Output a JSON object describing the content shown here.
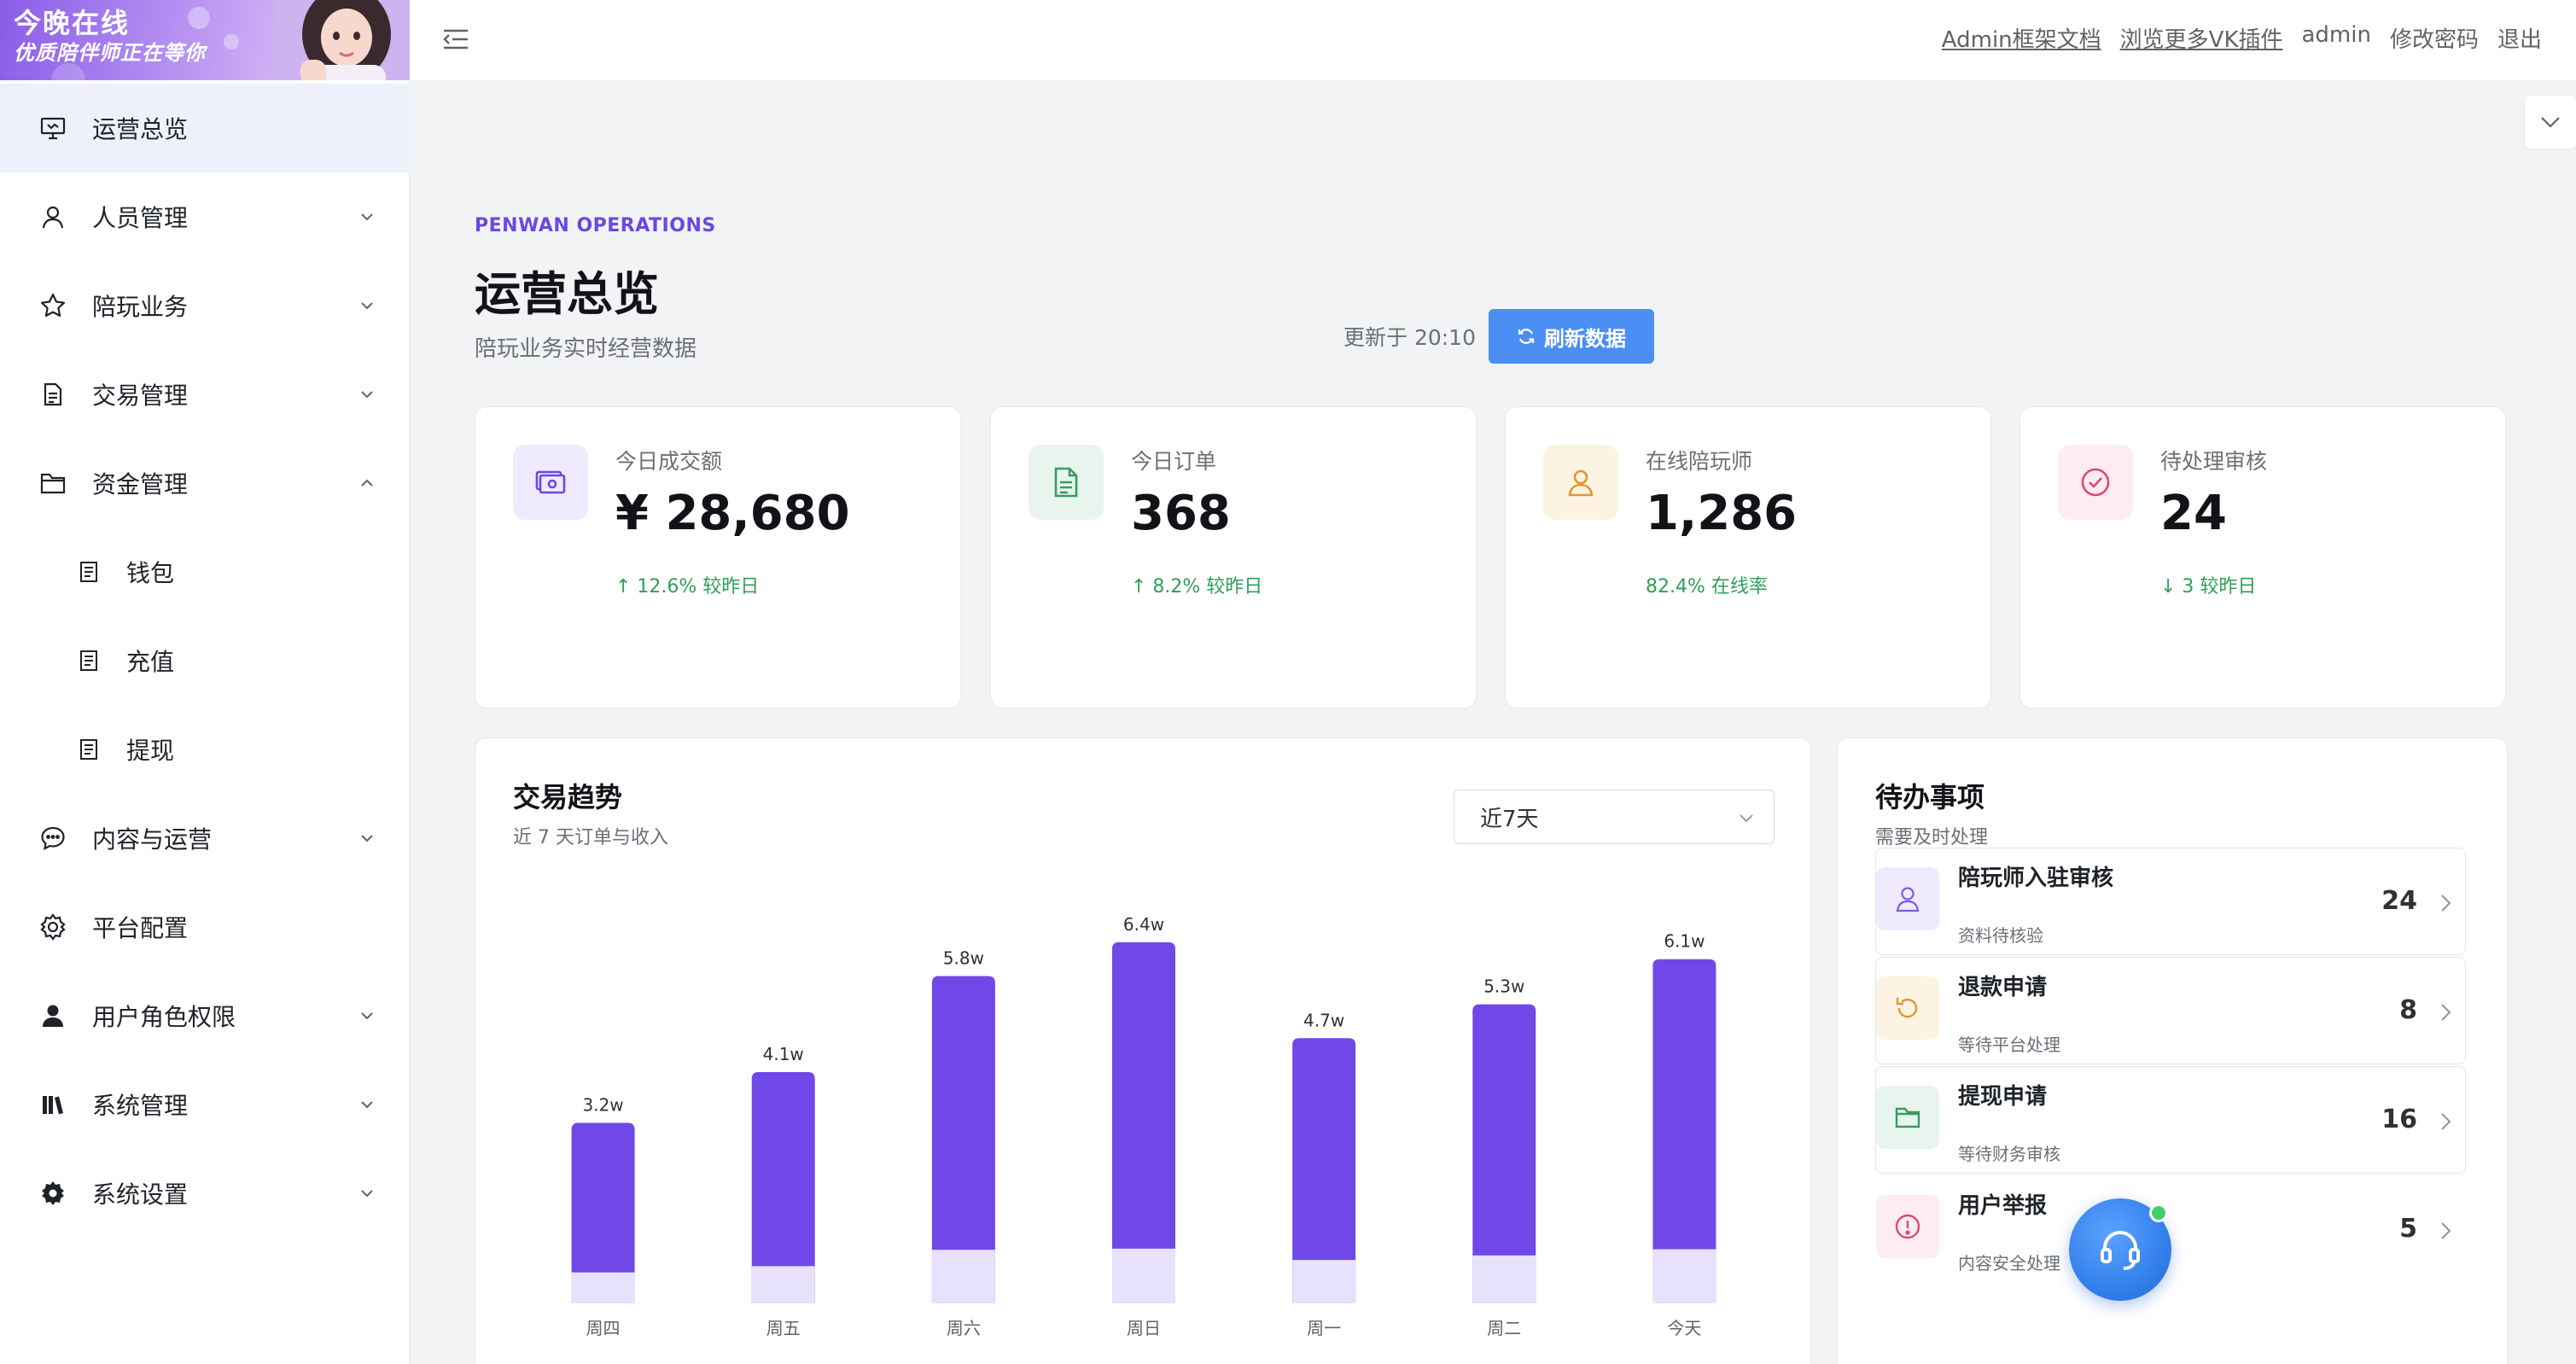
{
  "banner": {
    "line1": "今晚在线",
    "line2": "优质陪伴师正在等你"
  },
  "sidebar": {
    "items": [
      {
        "label": "运营总览",
        "icon": "presentation-board-icon",
        "active": true
      },
      {
        "label": "人员管理",
        "icon": "user-icon",
        "expandable": true,
        "expanded": false
      },
      {
        "label": "陪玩业务",
        "icon": "star-icon",
        "expandable": true,
        "expanded": false
      },
      {
        "label": "交易管理",
        "icon": "document-icon",
        "expandable": true,
        "expanded": false
      },
      {
        "label": "资金管理",
        "icon": "folder-icon",
        "expandable": true,
        "expanded": true
      },
      {
        "label": "钱包",
        "icon": "document-icon",
        "sub": true
      },
      {
        "label": "充值",
        "icon": "document-icon",
        "sub": true
      },
      {
        "label": "提现",
        "icon": "document-icon",
        "sub": true
      },
      {
        "label": "内容与运营",
        "icon": "chat-bubble-icon",
        "expandable": true,
        "expanded": false
      },
      {
        "label": "平台配置",
        "icon": "gear-icon"
      },
      {
        "label": "用户角色权限",
        "icon": "person-solid-icon",
        "expandable": true,
        "expanded": false
      },
      {
        "label": "系统管理",
        "icon": "books-icon",
        "expandable": true,
        "expanded": false
      },
      {
        "label": "系统设置",
        "icon": "gear-solid-icon",
        "expandable": true,
        "expanded": false
      }
    ]
  },
  "header": {
    "links": [
      "Admin框架文档",
      "浏览更多VK插件",
      "admin",
      "修改密码",
      "退出"
    ]
  },
  "page": {
    "kicker": "PENWAN OPERATIONS",
    "title": "运营总览",
    "subtitle": "陪玩业务实时经营数据",
    "updated": "更新于 20:10",
    "refresh_label": "刷新数据"
  },
  "stats": [
    {
      "label": "今日成交额",
      "value": "¥ 28,680",
      "trend": "↑ 12.6% 较昨日",
      "icon": "money-icon",
      "accent": "#6b48e0",
      "bg": "#efeafd"
    },
    {
      "label": "今日订单",
      "value": "368",
      "trend": "↑ 8.2% 较昨日",
      "icon": "file-icon",
      "accent": "#3a9a63",
      "bg": "#e8f5ee"
    },
    {
      "label": "在线陪玩师",
      "value": "1,286",
      "trend": "82.4% 在线率",
      "icon": "user-icon",
      "accent": "#e0972f",
      "bg": "#fdf3e3"
    },
    {
      "label": "待处理审核",
      "value": "24",
      "trend": "↓ 3 较昨日",
      "icon": "check-circle-icon",
      "accent": "#e0467a",
      "bg": "#fdecf2"
    }
  ],
  "trend": {
    "title": "交易趋势",
    "subtitle": "近 7 天订单与收入",
    "range": "近7天"
  },
  "chart_data": {
    "type": "bar",
    "categories": [
      "周四",
      "周五",
      "周六",
      "周日",
      "周一",
      "周二",
      "今天"
    ],
    "value_labels": [
      "3.2w",
      "4.1w",
      "5.8w",
      "6.4w",
      "4.7w",
      "5.3w",
      "6.1w"
    ],
    "series": [
      {
        "values": [
          3.2,
          4.1,
          5.8,
          6.4,
          4.7,
          5.3,
          6.1
        ],
        "color": "#7048e8"
      },
      {
        "values": [
          0.55,
          0.66,
          0.95,
          0.97,
          0.77,
          0.85,
          0.96
        ],
        "color": "#e7e1fb"
      }
    ],
    "ylim": [
      0,
      7.2
    ],
    "grid": false,
    "legend": "none"
  },
  "todo": {
    "title": "待办事项",
    "subtitle": "需要及时处理",
    "items": [
      {
        "title": "陪玩师入驻审核",
        "sub": "资料待核验",
        "count": "24",
        "icon": "user-icon",
        "accent": "#7b5ce6",
        "bg": "#efeafd"
      },
      {
        "title": "退款申请",
        "sub": "等待平台处理",
        "count": "8",
        "icon": "refresh-icon",
        "accent": "#e0972f",
        "bg": "#fdf3e3"
      },
      {
        "title": "提现申请",
        "sub": "等待财务审核",
        "count": "16",
        "icon": "wallet-icon",
        "accent": "#3a9a63",
        "bg": "#e8f5ee"
      },
      {
        "title": "用户举报",
        "sub": "内容安全处理",
        "count": "5",
        "icon": "alert-circle-icon",
        "accent": "#e0467a",
        "bg": "#fdecf2"
      }
    ]
  }
}
